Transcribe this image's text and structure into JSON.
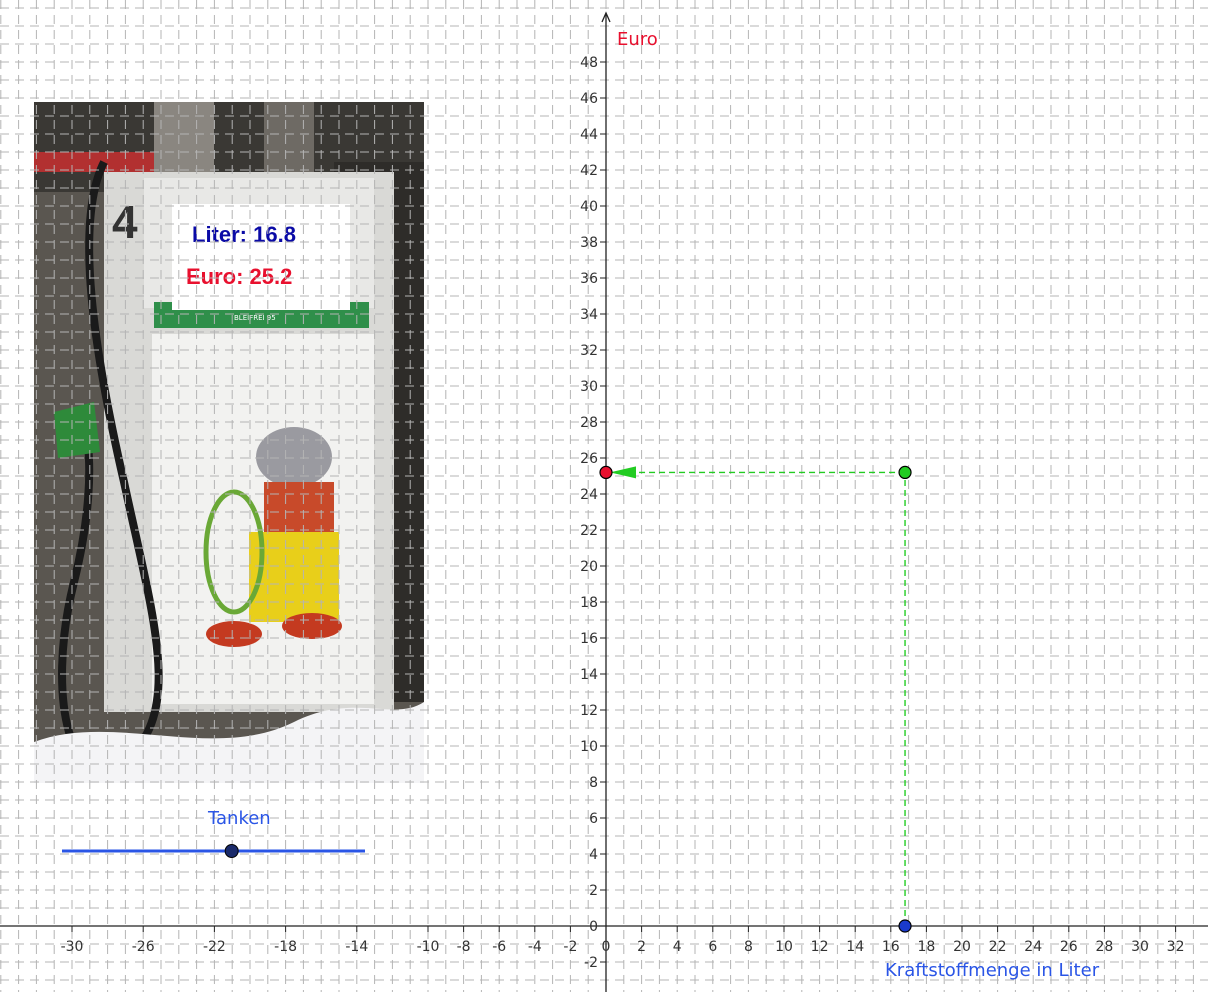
{
  "display": {
    "liter_text": "Liter: 16.8",
    "euro_text": "Euro: 25.2",
    "pump_number": "4",
    "pump_sign": "BLEIFREI 95"
  },
  "slider": {
    "label": "Tanken",
    "value_fraction": 0.56
  },
  "colors": {
    "liter": "#0a0aa6",
    "euro": "#e8102e",
    "axis_label_blue": "#2a55e6",
    "guide_green": "#22cc22",
    "grid": "#b4b4b4"
  },
  "chart_data": {
    "type": "scatter",
    "xlabel": "Kraftstoffmenge in Liter",
    "ylabel": "Euro",
    "grid": true,
    "xlim": [
      -33,
      33
    ],
    "ylim": [
      -3,
      49
    ],
    "x_ticks": [
      -30,
      -26,
      -22,
      -18,
      -14,
      -10,
      -8,
      -6,
      -4,
      -2,
      0,
      2,
      4,
      6,
      8,
      10,
      12,
      14,
      16,
      18,
      20,
      22,
      24,
      26,
      28,
      30,
      32
    ],
    "y_ticks": [
      0,
      2,
      4,
      6,
      8,
      10,
      12,
      14,
      16,
      18,
      20,
      22,
      24,
      26,
      28,
      30,
      32,
      34,
      36,
      38,
      40,
      42,
      44,
      46,
      48,
      -2
    ],
    "points": [
      {
        "name": "liter-point",
        "x": 16.8,
        "y": 0,
        "color": "#1a3acc"
      },
      {
        "name": "pump-point",
        "x": 16.8,
        "y": 25.2,
        "color": "#22cc22"
      },
      {
        "name": "euro-point",
        "x": 0,
        "y": 25.2,
        "color": "#e8102e"
      }
    ]
  }
}
